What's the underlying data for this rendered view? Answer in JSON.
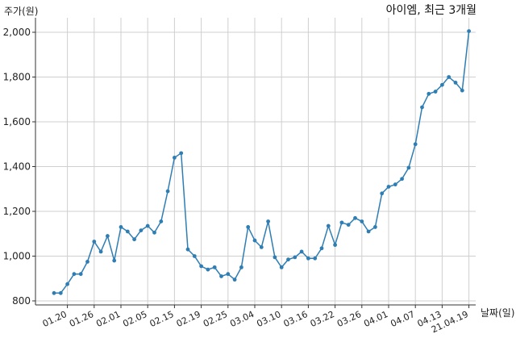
{
  "chart_data": {
    "type": "line",
    "title": "아이엠, 최근 3개월",
    "ylabel": "주가(원)",
    "xlabel": "날짜(일)",
    "ylim": [
      800,
      2000
    ],
    "yticks": [
      800,
      1000,
      1200,
      1400,
      1600,
      1800,
      2000
    ],
    "ytick_labels": [
      "800",
      "1,000",
      "1,200",
      "1,400",
      "1,600",
      "1,800",
      "2,000"
    ],
    "xtick_labels": [
      "01.20",
      "01.26",
      "02.01",
      "02.05",
      "02.15",
      "02.19",
      "02.25",
      "03.04",
      "03.10",
      "03.16",
      "03.22",
      "03.26",
      "04.01",
      "04.07",
      "04.13",
      "21.04.19"
    ],
    "xtick_positions": [
      2,
      6,
      10,
      14,
      18,
      22,
      26,
      30,
      34,
      38,
      42,
      46,
      50,
      54,
      58,
      62
    ],
    "grid": true,
    "line_color": "#2e7eb4",
    "series": [
      {
        "values": [
          835,
          835,
          875,
          920,
          920,
          975,
          1065,
          1020,
          1090,
          980,
          1130,
          1110,
          1075,
          1115,
          1135,
          1105,
          1155,
          1290,
          1440,
          1460,
          1030,
          1000,
          955,
          940,
          950,
          910,
          920,
          895,
          950,
          1130,
          1070,
          1040,
          1155,
          995,
          950,
          985,
          995,
          1020,
          990,
          990,
          1035,
          1135,
          1050,
          1150,
          1140,
          1170,
          1155,
          1110,
          1130,
          1280,
          1310,
          1320,
          1345,
          1395,
          1500,
          1665,
          1725,
          1735,
          1765,
          1800,
          1775,
          1740,
          2005
        ]
      }
    ]
  }
}
